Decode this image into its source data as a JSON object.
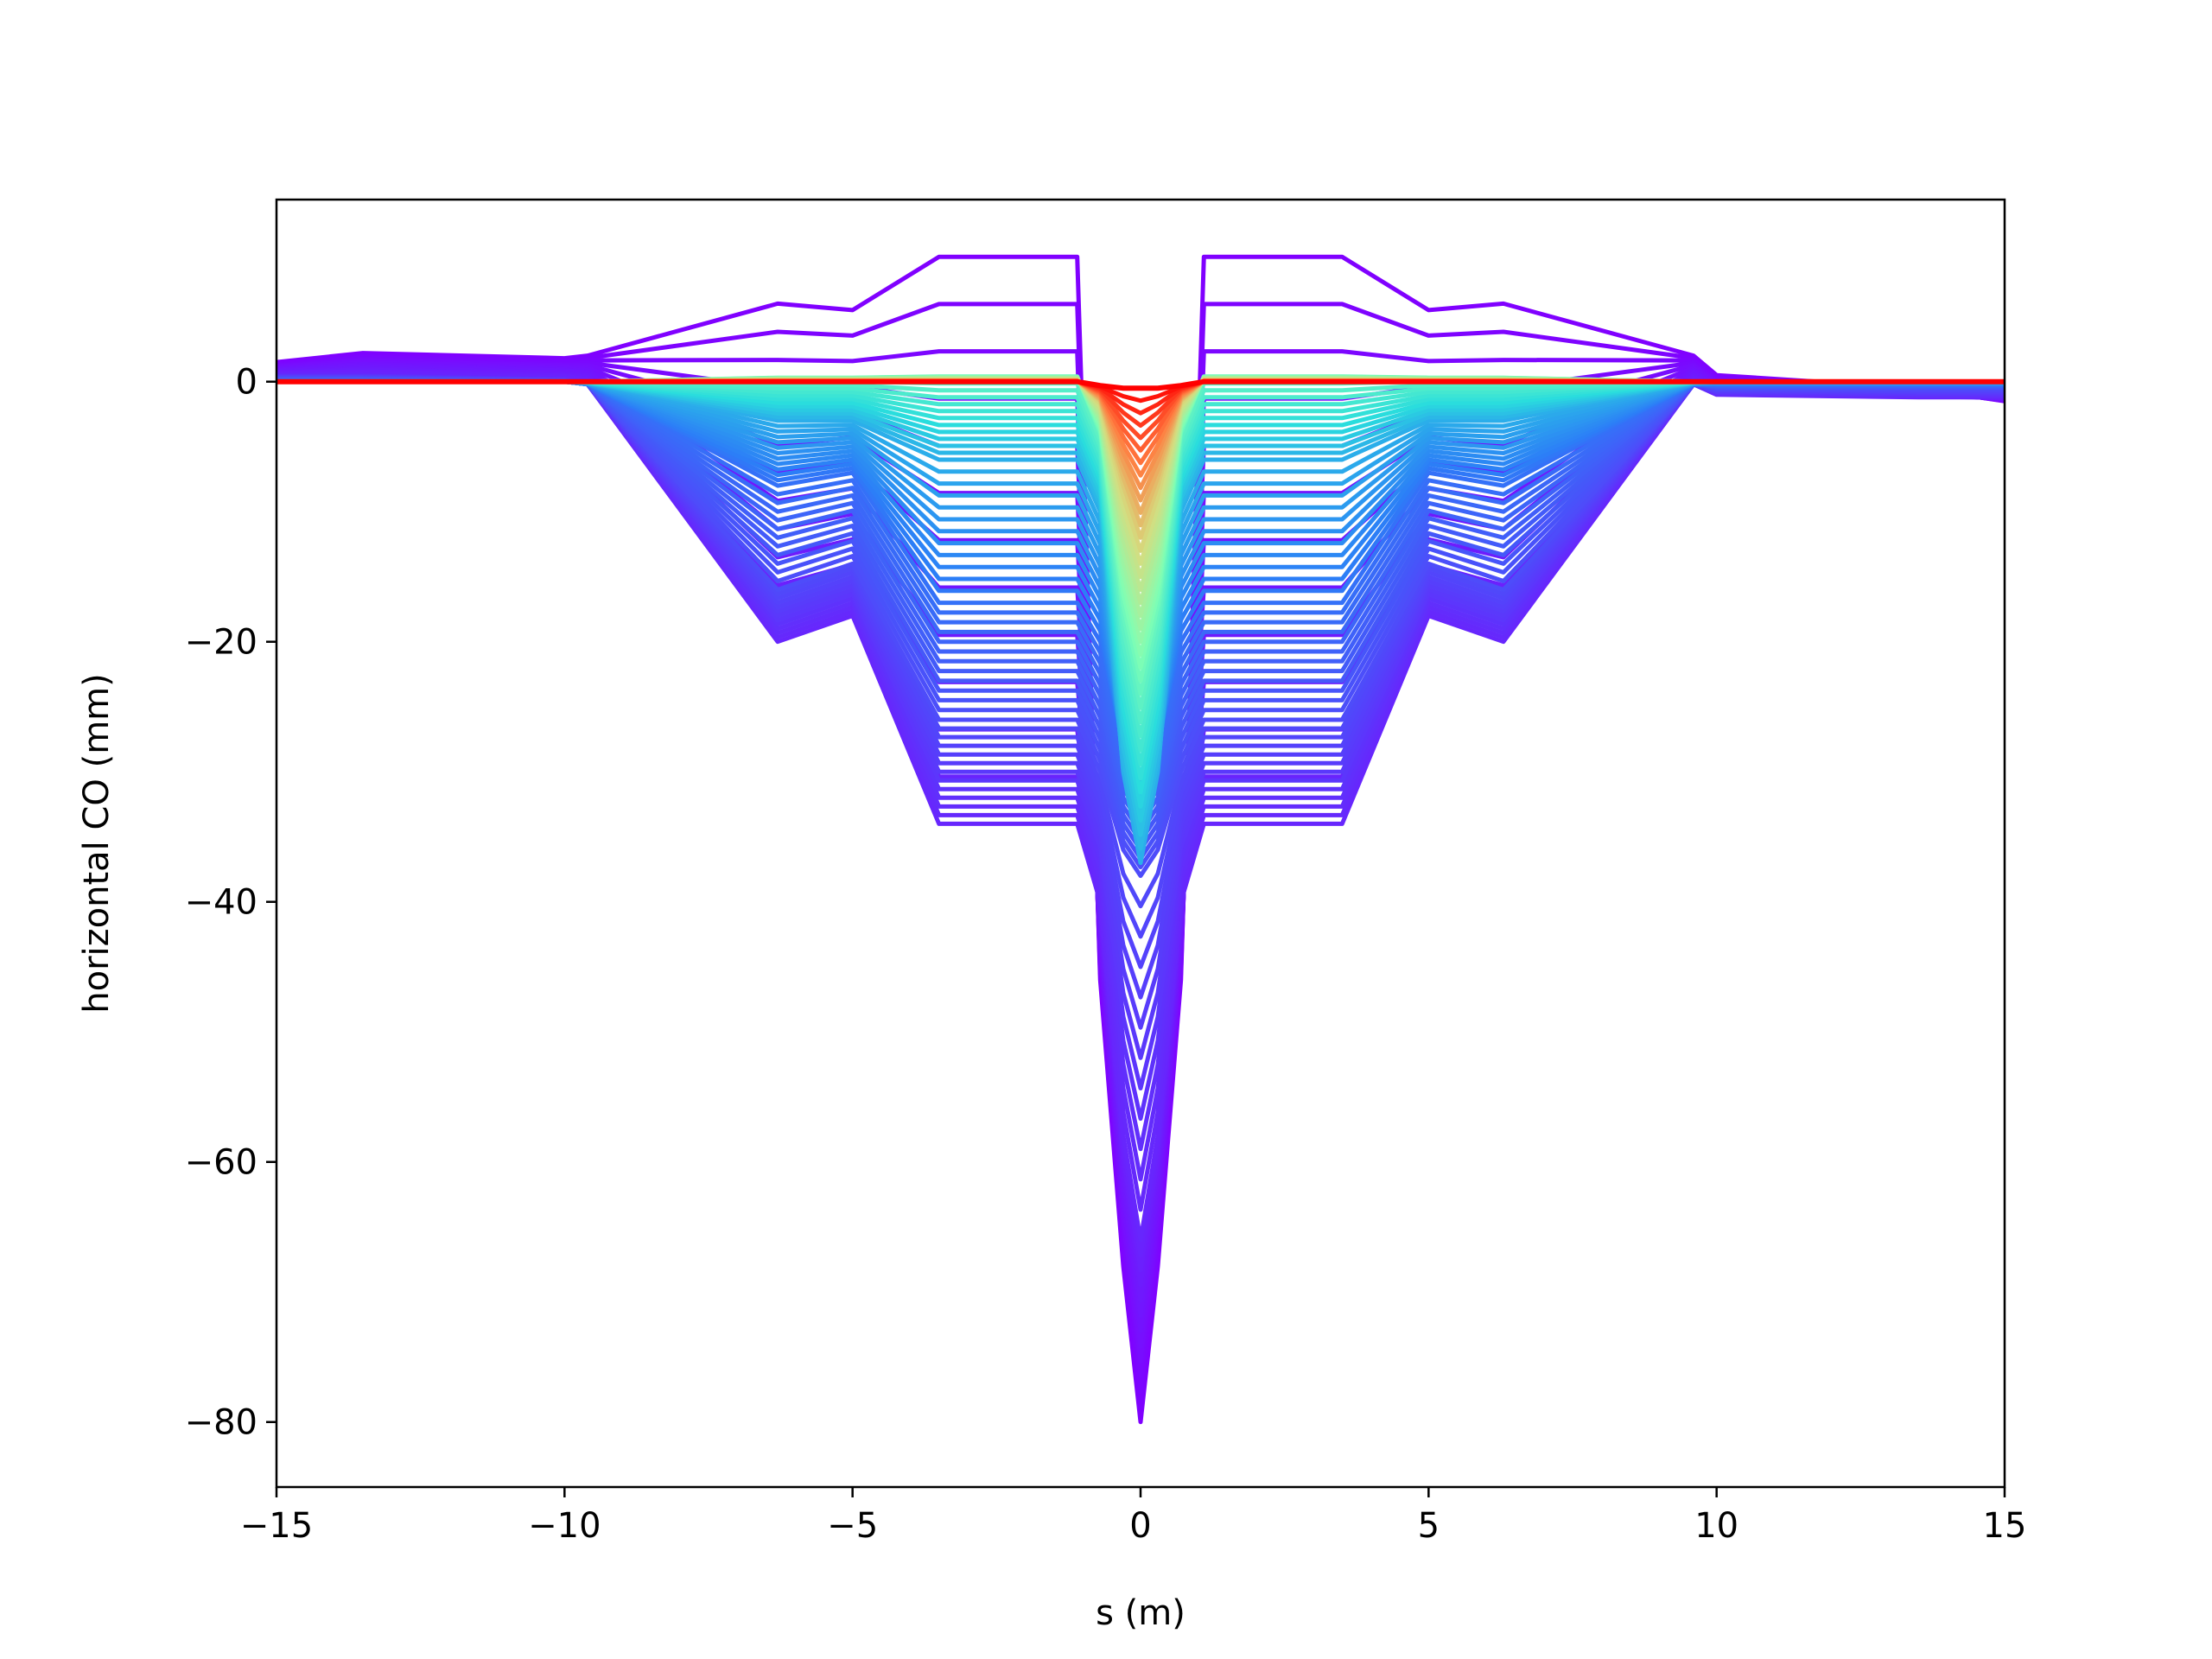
{
  "chart_data": {
    "type": "line",
    "title": "",
    "xlabel": "s (m)",
    "ylabel": "horizontal CO (mm)",
    "xlim": [
      -15,
      15
    ],
    "ylim": [
      -85,
      14
    ],
    "xticks": [
      -15,
      -10,
      -5,
      0,
      5,
      10,
      15
    ],
    "xtick_labels": [
      "−15",
      "−10",
      "−5",
      "0",
      "5",
      "10",
      "15"
    ],
    "yticks": [
      0,
      -20,
      -40,
      -60,
      -80
    ],
    "ytick_labels": [
      "0",
      "−20",
      "−40",
      "−60",
      "−80"
    ],
    "grid": false,
    "legend": "none",
    "colormap": "rainbow",
    "colormap_stops": [
      "#8000ff",
      "#2c7ef7",
      "#2adddd",
      "#80ffb4",
      "#d4dd80",
      "#ff7e41",
      "#ff0000"
    ],
    "series_shape": {
      "s_break_points": [
        -15,
        -13.5,
        -10,
        -9.6,
        -6.3,
        -5,
        -3.5,
        -1.1,
        -0.7,
        -0.3,
        0,
        0.3,
        0.7,
        1.1,
        3.5,
        5,
        6.3,
        9.6,
        10,
        13.5,
        15
      ],
      "description_unit": "mm"
    },
    "series": [
      {
        "color_index": 0.0,
        "values": [
          1.5,
          2.2,
          1.8,
          2.0,
          6.0,
          5.5,
          9.6,
          9.6,
          -46,
          -68,
          -80,
          -68,
          -46,
          9.6,
          9.6,
          5.5,
          6.0,
          2.0,
          0.5,
          -0.5,
          -1.5
        ]
      },
      {
        "color_index": 0.05,
        "values": [
          0.5,
          0.5,
          0.2,
          -0.2,
          -20,
          -18,
          -34,
          -34,
          -40,
          -58,
          -66,
          -58,
          -40,
          -34,
          -34,
          -18,
          -20,
          -0.2,
          -1.0,
          -1.2,
          -1.2
        ]
      },
      {
        "color_index": 0.1,
        "values": [
          0.2,
          0.2,
          0.0,
          -0.2,
          -16,
          -14,
          -26,
          -26,
          -30,
          -36,
          -38,
          -36,
          -30,
          -26,
          -26,
          -14,
          -16,
          -0.2,
          -0.5,
          -0.5,
          -0.5
        ]
      },
      {
        "color_index": 0.15,
        "values": [
          0.0,
          0.0,
          0.0,
          -0.2,
          -8,
          -7,
          -17,
          -17,
          -20,
          -28,
          -30,
          -28,
          -20,
          -17,
          -17,
          -7,
          -8,
          -0.2,
          -0.2,
          -0.2,
          -0.2
        ]
      },
      {
        "color_index": 0.25,
        "values": [
          0.0,
          0.0,
          0.0,
          -0.1,
          -3,
          -3,
          -6,
          -6,
          -10,
          -30,
          -37,
          -30,
          -10,
          -6,
          -6,
          -3,
          -3,
          -0.1,
          0.0,
          0.0,
          0.0
        ]
      },
      {
        "color_index": 0.45,
        "values": [
          0.0,
          0.0,
          0.0,
          0.0,
          0.3,
          0.3,
          0.4,
          0.4,
          -4,
          -18,
          -24,
          -18,
          -4,
          0.4,
          0.4,
          0.3,
          0.3,
          0.0,
          0.0,
          0.0,
          0.0
        ]
      },
      {
        "color_index": 0.7,
        "values": [
          0.0,
          0.0,
          0.0,
          0.0,
          0.1,
          0.1,
          0.1,
          0.1,
          -1.5,
          -8,
          -12,
          -8,
          -1.5,
          0.1,
          0.1,
          0.1,
          0.1,
          0.0,
          0.0,
          0.0,
          0.0
        ]
      },
      {
        "color_index": 1.0,
        "values": [
          0.0,
          0.0,
          0.0,
          0.0,
          0.0,
          0.0,
          0.0,
          0.0,
          -0.3,
          -0.5,
          -0.5,
          -0.5,
          -0.3,
          0.0,
          0.0,
          0.0,
          0.0,
          0.0,
          0.0,
          0.0,
          0.0
        ]
      }
    ]
  }
}
